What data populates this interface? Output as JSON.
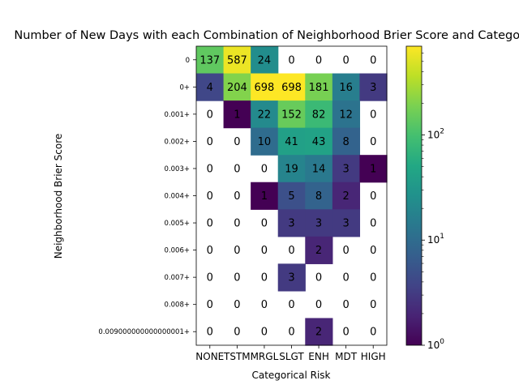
{
  "chart_data": {
    "type": "heatmap",
    "title": "Number of New Days with each Combination of Neighborhood Brier Score and Categorical Risk",
    "xlabel": "Categorical Risk",
    "ylabel": "Neighborhood Brier Score",
    "x_categories": [
      "NONE",
      "TSTM",
      "MRGL",
      "SLGT",
      "ENH",
      "MDT",
      "HIGH"
    ],
    "y_categories": [
      "0",
      "0+",
      "0.001+",
      "0.002+",
      "0.003+",
      "0.004+",
      "0.005+",
      "0.006+",
      "0.007+",
      "0.008+",
      "0.009000000000000001+"
    ],
    "values": [
      [
        137,
        587,
        24,
        0,
        0,
        0,
        0
      ],
      [
        4,
        204,
        698,
        698,
        181,
        16,
        3
      ],
      [
        0,
        1,
        22,
        152,
        82,
        12,
        0
      ],
      [
        0,
        0,
        10,
        41,
        43,
        8,
        0
      ],
      [
        0,
        0,
        0,
        19,
        14,
        3,
        1
      ],
      [
        0,
        0,
        1,
        5,
        8,
        2,
        0
      ],
      [
        0,
        0,
        0,
        3,
        3,
        3,
        0
      ],
      [
        0,
        0,
        0,
        0,
        2,
        0,
        0
      ],
      [
        0,
        0,
        0,
        3,
        0,
        0,
        0
      ],
      [
        0,
        0,
        0,
        0,
        0,
        0,
        0
      ],
      [
        0,
        0,
        0,
        0,
        2,
        0,
        0
      ]
    ],
    "colormap": "viridis",
    "color_scale": "log",
    "color_range": [
      1,
      698
    ],
    "colorbar_ticks": [
      {
        "base": "10",
        "exp": "0",
        "value": 1
      },
      {
        "base": "10",
        "exp": "1",
        "value": 10
      },
      {
        "base": "10",
        "exp": "2",
        "value": 100
      }
    ],
    "zero_color": "#ffffff",
    "grid": false
  }
}
